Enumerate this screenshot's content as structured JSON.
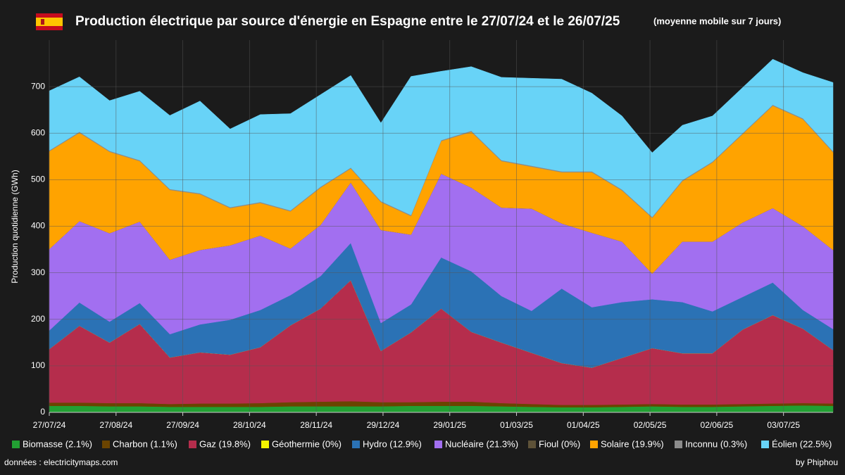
{
  "chart_data": {
    "type": "stacked-area",
    "title": "Production électrique par source d'énergie en Espagne entre le 27/07/24 et le 26/07/25",
    "subtitle": "(moyenne mobile sur 7 jours)",
    "y_label": "Production quotidienne (GWh)",
    "source": "données : electricitymaps.com",
    "credit": "by Phiphou",
    "grid": true,
    "x": [
      "2024-07-27",
      "2024-08-10",
      "2024-08-24",
      "2024-09-07",
      "2024-09-21",
      "2024-10-05",
      "2024-10-19",
      "2024-11-02",
      "2024-11-16",
      "2024-11-30",
      "2024-12-14",
      "2024-12-28",
      "2025-01-11",
      "2025-01-25",
      "2025-02-08",
      "2025-02-22",
      "2025-03-08",
      "2025-03-22",
      "2025-04-05",
      "2025-04-19",
      "2025-05-03",
      "2025-05-17",
      "2025-05-31",
      "2025-06-14",
      "2025-06-28",
      "2025-07-12",
      "2025-07-26"
    ],
    "xlim": [
      "2024-07-27",
      "2025-07-26"
    ],
    "xticks": [
      {
        "value": "2024-07-27",
        "label": "27/07/24"
      },
      {
        "value": "2024-08-27",
        "label": "27/08/24"
      },
      {
        "value": "2024-09-27",
        "label": "27/09/24"
      },
      {
        "value": "2024-10-28",
        "label": "28/10/24"
      },
      {
        "value": "2024-11-28",
        "label": "28/11/24"
      },
      {
        "value": "2024-12-29",
        "label": "29/12/24"
      },
      {
        "value": "2025-01-29",
        "label": "29/01/25"
      },
      {
        "value": "2025-03-01",
        "label": "01/03/25"
      },
      {
        "value": "2025-04-01",
        "label": "01/04/25"
      },
      {
        "value": "2025-05-02",
        "label": "02/05/25"
      },
      {
        "value": "2025-06-02",
        "label": "02/06/25"
      },
      {
        "value": "2025-07-03",
        "label": "03/07/25"
      }
    ],
    "ylim": [
      0,
      800
    ],
    "yticks": [
      0,
      100,
      200,
      300,
      400,
      500,
      600,
      700
    ],
    "series": [
      {
        "name": "Biomasse (2.1%)",
        "color": "#22a033",
        "values": [
          14,
          14,
          13,
          13,
          12,
          12,
          12,
          12,
          13,
          13,
          13,
          13,
          14,
          14,
          14,
          13,
          12,
          11,
          11,
          12,
          13,
          12,
          12,
          13,
          14,
          15,
          14
        ]
      },
      {
        "name": "Charbon (1.1%)",
        "color": "#6b4400",
        "values": [
          7,
          7,
          7,
          7,
          6,
          7,
          7,
          8,
          9,
          10,
          11,
          9,
          8,
          9,
          9,
          7,
          6,
          5,
          5,
          5,
          5,
          5,
          5,
          5,
          5,
          5,
          5
        ]
      },
      {
        "name": "Gaz (19.8%)",
        "color": "#b52d4c",
        "values": [
          115,
          165,
          130,
          170,
          100,
          110,
          105,
          120,
          165,
          200,
          260,
          110,
          150,
          200,
          150,
          130,
          110,
          90,
          80,
          100,
          120,
          110,
          110,
          160,
          190,
          160,
          115
        ]
      },
      {
        "name": "Géothermie (0%)",
        "color": "#f5f500",
        "values": [
          0,
          0,
          0,
          0,
          0,
          0,
          0,
          0,
          0,
          0,
          0,
          0,
          0,
          0,
          0,
          0,
          0,
          0,
          0,
          0,
          0,
          0,
          0,
          0,
          0,
          0,
          0
        ]
      },
      {
        "name": "Hydro (12.9%)",
        "color": "#2b72b5",
        "values": [
          40,
          50,
          45,
          45,
          50,
          60,
          75,
          80,
          65,
          70,
          80,
          60,
          60,
          110,
          130,
          100,
          90,
          160,
          130,
          120,
          105,
          110,
          90,
          70,
          70,
          40,
          45
        ]
      },
      {
        "name": "Nucléaire (21.3%)",
        "color": "#a26ff0",
        "values": [
          175,
          175,
          190,
          175,
          160,
          160,
          160,
          160,
          100,
          110,
          130,
          200,
          150,
          180,
          180,
          190,
          220,
          140,
          160,
          130,
          55,
          130,
          150,
          160,
          160,
          180,
          170
        ]
      },
      {
        "name": "Fioul (0%)",
        "color": "#5e5238",
        "values": [
          0,
          0,
          0,
          0,
          0,
          0,
          0,
          0,
          0,
          0,
          0,
          0,
          0,
          0,
          0,
          0,
          0,
          0,
          0,
          0,
          0,
          0,
          0,
          0,
          0,
          0,
          0
        ]
      },
      {
        "name": "Solaire (19.9%)",
        "color": "#ffa300",
        "values": [
          210,
          190,
          175,
          130,
          150,
          120,
          80,
          70,
          80,
          80,
          30,
          60,
          40,
          70,
          120,
          100,
          90,
          110,
          130,
          110,
          120,
          130,
          170,
          190,
          220,
          230,
          210
        ]
      },
      {
        "name": "Inconnu (0.3%)",
        "color": "#8c8c8c",
        "values": [
          2,
          2,
          2,
          2,
          2,
          2,
          2,
          2,
          2,
          2,
          2,
          2,
          2,
          2,
          2,
          2,
          2,
          2,
          2,
          2,
          2,
          2,
          2,
          2,
          2,
          2,
          2
        ]
      },
      {
        "name": "Éolien (22.5%)",
        "color": "#68d3f7",
        "values": [
          128,
          118,
          108,
          148,
          158,
          198,
          168,
          188,
          208,
          198,
          198,
          168,
          298,
          148,
          138,
          178,
          188,
          198,
          168,
          158,
          138,
          118,
          98,
          98,
          98,
          98,
          148
        ]
      }
    ]
  }
}
